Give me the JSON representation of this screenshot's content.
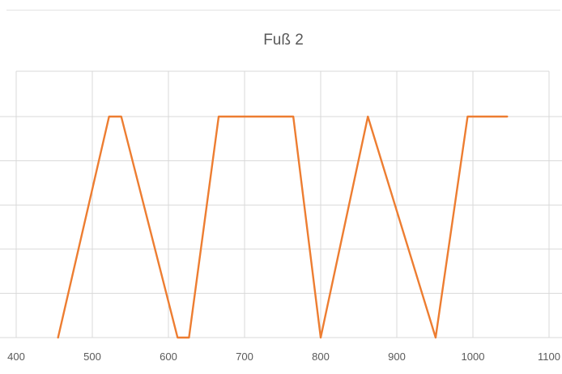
{
  "chart_data": {
    "type": "line",
    "title": "Fuß 2",
    "xlabel": "",
    "ylabel": "",
    "xlim": [
      400,
      1100
    ],
    "ylim": [
      0,
      5
    ],
    "x_ticks": [
      400,
      500,
      600,
      700,
      800,
      900,
      1000,
      1100
    ],
    "x_tick_labels": [
      "400",
      "500",
      "600",
      "700",
      "800",
      "900",
      "1000",
      "1100"
    ],
    "y_gridlines": [
      0,
      1,
      2,
      3,
      4,
      5
    ],
    "y_tick_labels_visible": false,
    "grid": true,
    "legend": "none",
    "series": [
      {
        "color": "#ed7d31",
        "x": [
          455,
          522,
          538,
          612,
          627,
          666,
          764,
          800,
          862,
          951,
          993,
          1045
        ],
        "y": [
          0,
          5,
          5,
          0,
          0,
          5,
          5,
          0,
          5,
          0,
          5,
          5
        ]
      }
    ]
  },
  "colors": {
    "grid": "#d9d9d9",
    "text": "#595959",
    "line": "#ed7d31"
  }
}
